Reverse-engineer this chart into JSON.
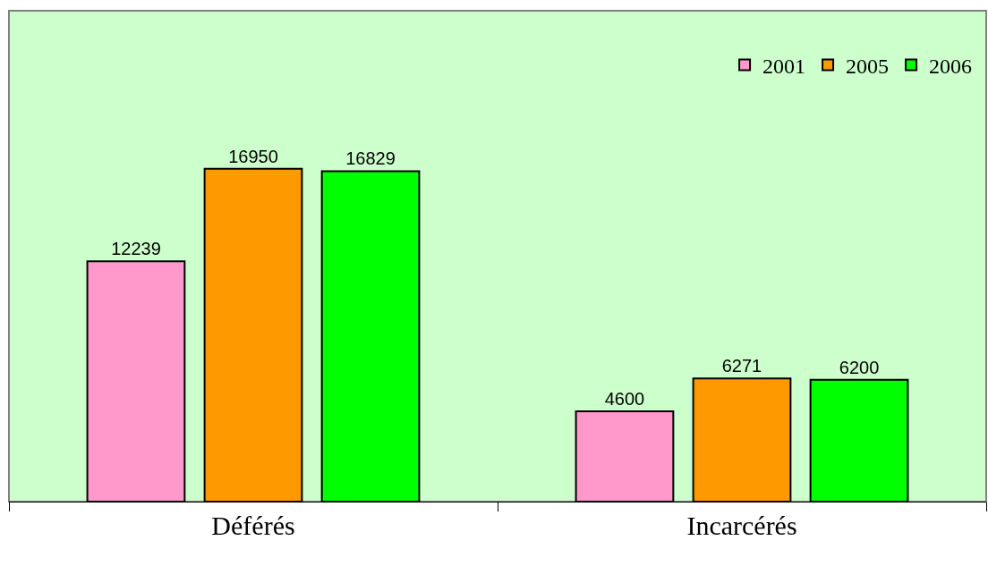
{
  "chart_data": {
    "type": "bar",
    "categories": [
      "Déférés",
      "Incarcérés"
    ],
    "series": [
      {
        "name": "2001",
        "color": "#ff99cc",
        "values": [
          12239,
          4600
        ]
      },
      {
        "name": "2005",
        "color": "#ff9900",
        "values": [
          16950,
          6271
        ]
      },
      {
        "name": "2006",
        "color": "#00ff00",
        "values": [
          16829,
          6200
        ]
      }
    ],
    "ylim": [
      0,
      25000
    ],
    "data_labels": true,
    "legend": "top right",
    "grid": false,
    "tick_labels": "x"
  }
}
